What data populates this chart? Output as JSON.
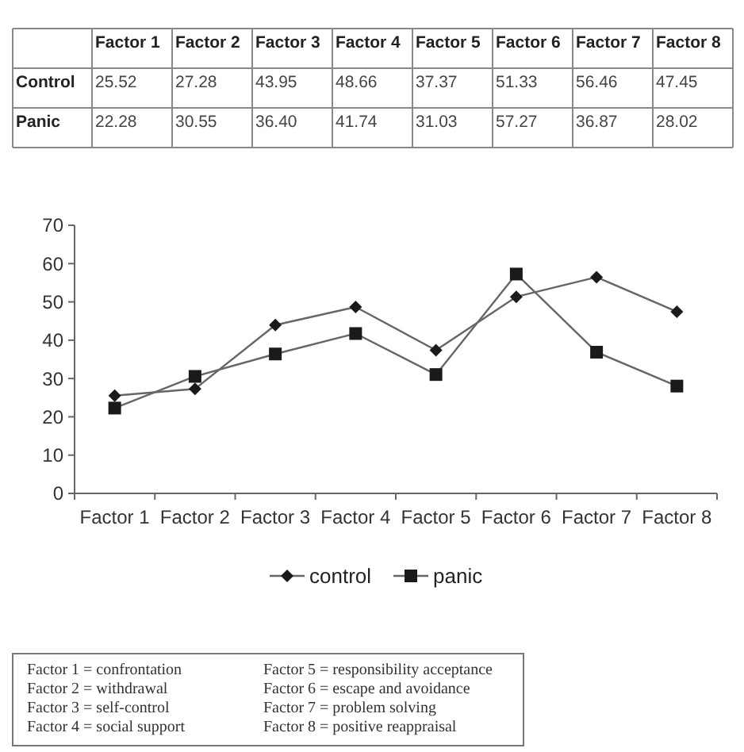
{
  "chart_data": {
    "type": "line",
    "categories": [
      "Factor 1",
      "Factor 2",
      "Factor 3",
      "Factor 4",
      "Factor 5",
      "Factor 6",
      "Factor 7",
      "Factor 8"
    ],
    "series": [
      {
        "name": "control",
        "color": "#1a1a1a",
        "marker": "diamond",
        "values": [
          25.52,
          27.28,
          43.95,
          48.66,
          37.37,
          51.33,
          56.46,
          47.45
        ],
        "value_labels": [
          "25.52",
          "27.28",
          "43.95",
          "48.66",
          "37.37",
          "51.33",
          "56.46",
          "47.45"
        ]
      },
      {
        "name": "panic",
        "color": "#1a1a1a",
        "marker": "square",
        "values": [
          22.28,
          30.55,
          36.4,
          41.74,
          31.03,
          57.27,
          36.87,
          28.02
        ],
        "value_labels": [
          "22.28",
          "30.55",
          "36.40",
          "41.74",
          "31.03",
          "57.27",
          "36.87",
          "28.02"
        ]
      }
    ],
    "ylim": [
      0,
      70
    ],
    "yticks": [
      0,
      10,
      20,
      30,
      40,
      50,
      60,
      70
    ],
    "grid": false,
    "legend": "bottom",
    "line_style": "solid",
    "annotations": [
      "Control",
      "Panic",
      "Factor 1 = confrontation",
      "Factor 2 = withdrawal",
      "Factor 3 = self-control",
      "Factor 4 = social support",
      "Factor 5 = responsibility acceptance",
      "Factor 6 = escape and avoidance",
      "Factor 7 = problem solving",
      "Factor 8 = positive reappraisal"
    ]
  }
}
